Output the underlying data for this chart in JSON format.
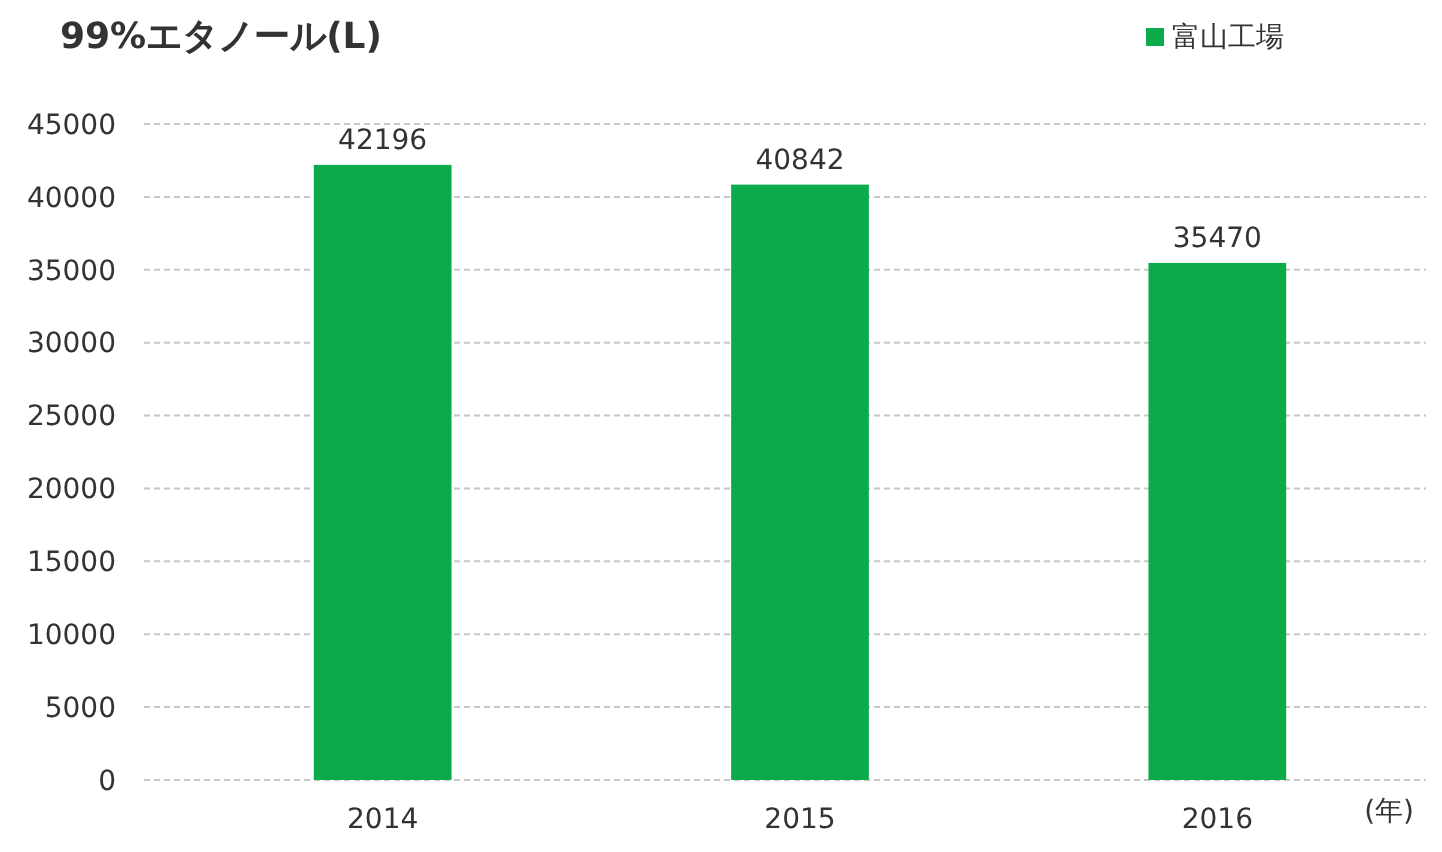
{
  "chart_data": {
    "type": "bar",
    "title": "99%エタノール(L)",
    "xlabel": "(年)",
    "categories": [
      "2014",
      "2015",
      "2016"
    ],
    "series": [
      {
        "name": "富山工場",
        "color": "#0bab4b",
        "values": [
          42196,
          40842,
          35470
        ]
      }
    ],
    "ylim": [
      0,
      45000
    ],
    "yticks": [
      0,
      5000,
      10000,
      15000,
      20000,
      25000,
      30000,
      35000,
      40000,
      45000
    ],
    "grid": "y",
    "legend": "top right",
    "data_labels": true
  }
}
